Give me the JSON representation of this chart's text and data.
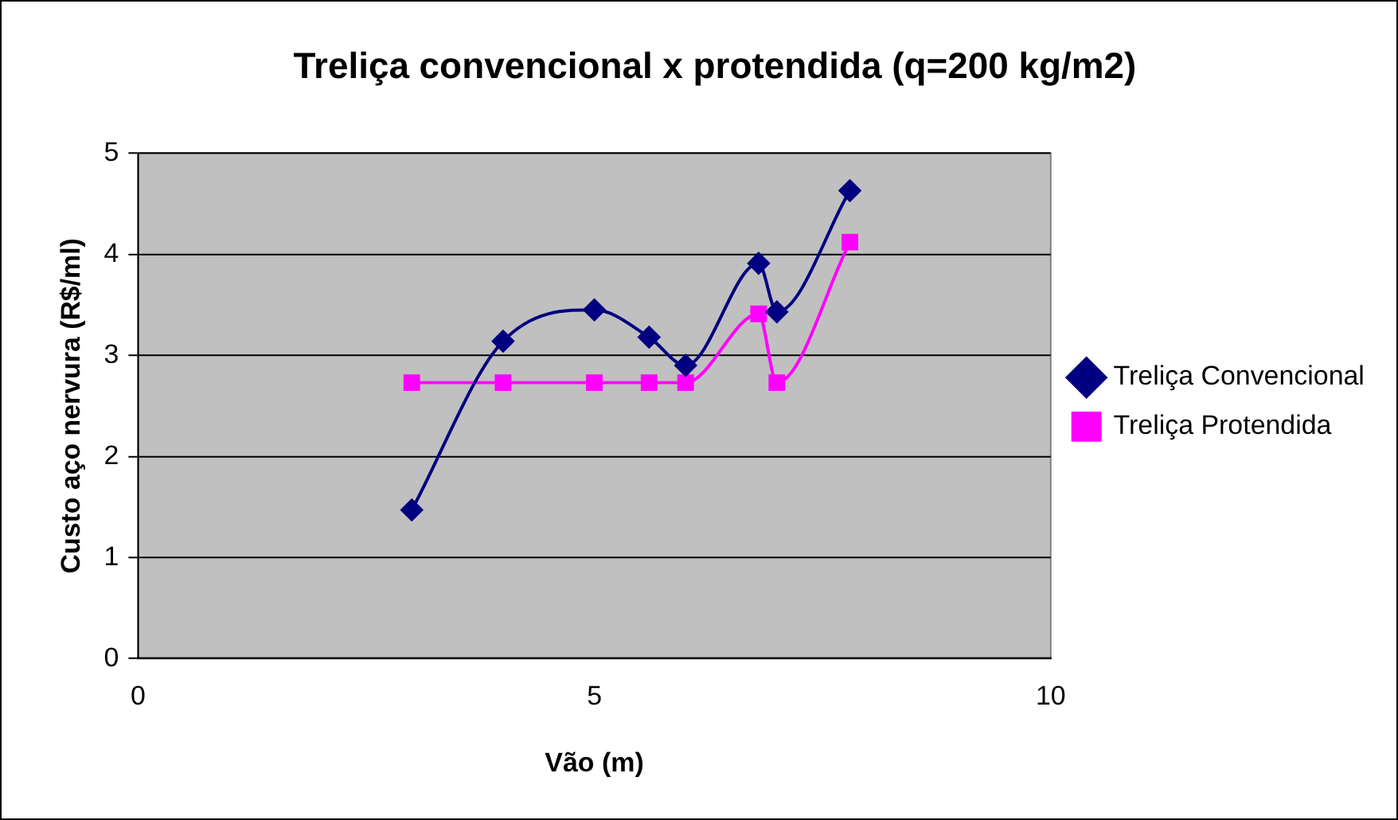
{
  "chart_data": {
    "type": "line",
    "title": "Treliça convencional x protendida (q=200 kg/m2)",
    "xlabel": "Vão (m)",
    "ylabel": "Custo aço nervura (R$/ml)",
    "x": [
      3.0,
      4.0,
      5.0,
      5.6,
      6.0,
      6.8,
      7.0,
      7.8
    ],
    "series": [
      {
        "name": "Treliça Convencional",
        "color": "#000080",
        "marker": "diamond",
        "values": [
          1.47,
          3.14,
          3.45,
          3.18,
          2.9,
          3.91,
          3.43,
          4.63
        ]
      },
      {
        "name": "Treliça Protendida",
        "color": "#ff00ff",
        "marker": "square",
        "values": [
          2.73,
          2.73,
          2.73,
          2.73,
          2.73,
          3.41,
          2.73,
          4.12
        ]
      }
    ],
    "xlim": [
      0,
      10
    ],
    "xticks": [
      0,
      5,
      10
    ],
    "ylim": [
      0,
      5
    ],
    "yticks": [
      0,
      1,
      2,
      3,
      4,
      5
    ],
    "grid": "y",
    "legend": "right"
  }
}
